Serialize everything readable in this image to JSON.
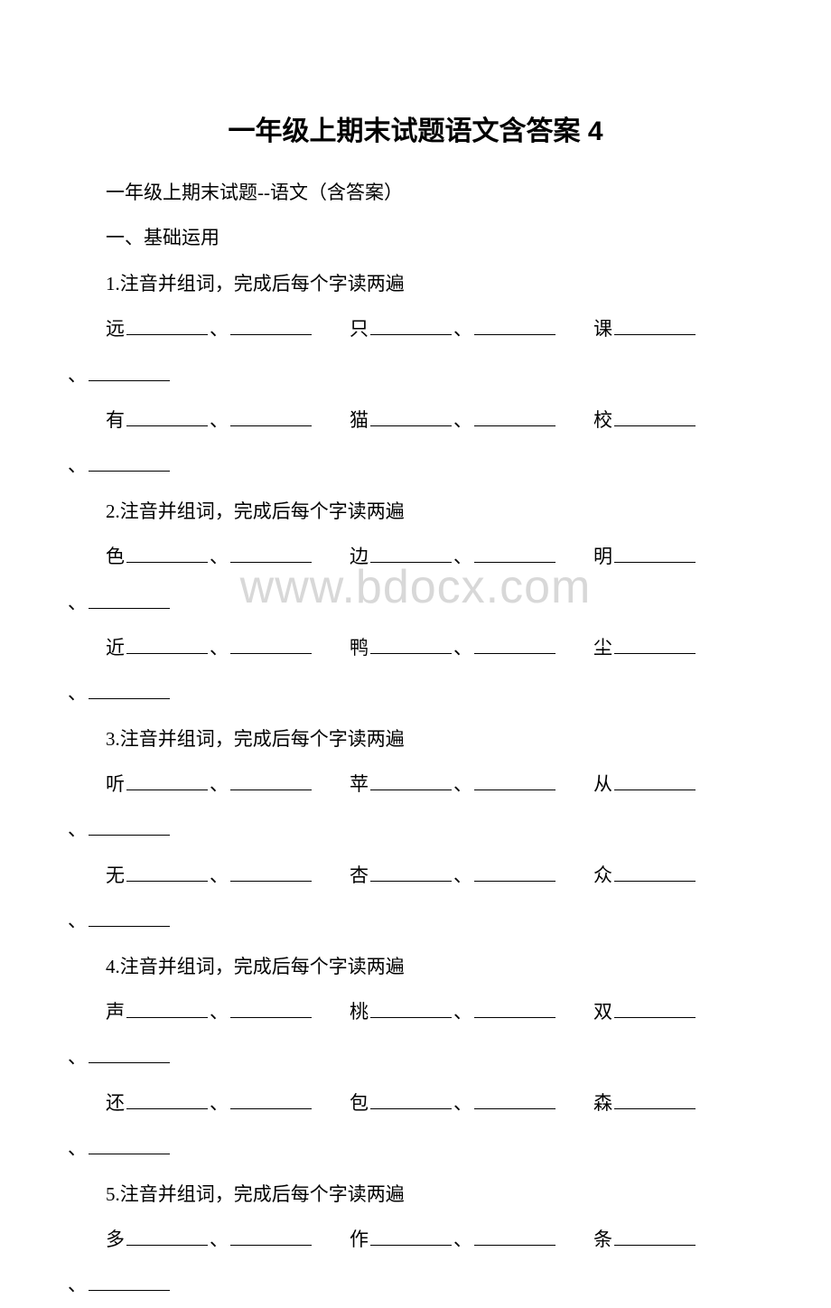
{
  "document": {
    "title": "一年级上期末试题语文含答案 4",
    "subtitle": "一年级上期末试题--语文（含答案）",
    "section_heading": "一、基础运用",
    "watermark": "www.bdocx.com",
    "font_color": "#000000",
    "watermark_color": "#d8d8d8",
    "background_color": "#ffffff",
    "title_fontsize": 30,
    "body_fontsize": 21,
    "questions": [
      {
        "number": "1",
        "prompt": "1.注音并组词，完成后每个字读两遍",
        "chars": [
          "远",
          "只",
          "课",
          "有",
          "猫",
          "校"
        ]
      },
      {
        "number": "2",
        "prompt": "2.注音并组词，完成后每个字读两遍",
        "chars": [
          "色",
          "边",
          "明",
          "近",
          "鸭",
          "尘"
        ]
      },
      {
        "number": "3",
        "prompt": "3.注音并组词，完成后每个字读两遍",
        "chars": [
          "听",
          "苹",
          "从",
          "无",
          "杏",
          "众"
        ]
      },
      {
        "number": "4",
        "prompt": "4.注音并组词，完成后每个字读两遍",
        "chars": [
          "声",
          "桃",
          "双",
          "还",
          "包",
          "森"
        ]
      },
      {
        "number": "5",
        "prompt": "5.注音并组词，完成后每个字读两遍",
        "chars": [
          "多",
          "作",
          "条"
        ]
      }
    ],
    "separator": "、"
  }
}
